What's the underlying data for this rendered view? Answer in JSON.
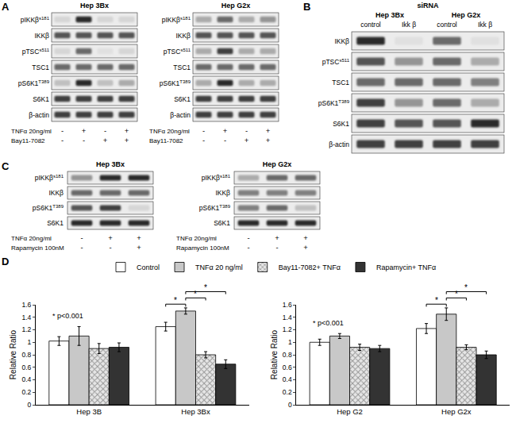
{
  "panels": [
    {
      "label": "A",
      "blots": [
        {
          "title": "Hep 3Bx",
          "conditions_position": "bottom",
          "rows": [
            {
              "name": "pIKKβ",
              "site": "s181",
              "bands": [
                0.1,
                0.9,
                0.1,
                0.1
              ]
            },
            {
              "name": "IKKβ",
              "bands": [
                0.7,
                0.7,
                0.7,
                0.7
              ]
            },
            {
              "name": "pTSC",
              "site": "s511",
              "bands": [
                0.1,
                0.6,
                0.05,
                0.1
              ]
            },
            {
              "name": "TSC1",
              "bands": [
                0.6,
                0.6,
                0.6,
                0.6
              ]
            },
            {
              "name": "pS6K1",
              "site": "T389",
              "bands": [
                0.2,
                0.9,
                0.2,
                0.3
              ]
            },
            {
              "name": "S6K1",
              "bands": [
                0.8,
                0.8,
                0.8,
                0.8
              ]
            },
            {
              "name": "β-actin",
              "bands": [
                0.8,
                0.8,
                0.8,
                0.8
              ]
            }
          ],
          "conditions": [
            {
              "label": "TNFα 20ng/ml",
              "values": [
                "-",
                "+",
                "-",
                "+"
              ]
            },
            {
              "label": "Bay11-7082",
              "values": [
                "-",
                "-",
                "+",
                "+"
              ]
            }
          ]
        },
        {
          "title": "Hep G2x",
          "conditions_position": "bottom",
          "rows": [
            {
              "name": "pIKKβ",
              "site": "s181",
              "bands": [
                0.3,
                0.6,
                0.3,
                0.4
              ]
            },
            {
              "name": "IKKβ",
              "bands": [
                0.7,
                0.7,
                0.7,
                0.7
              ]
            },
            {
              "name": "pTSC",
              "site": "s511",
              "bands": [
                0.3,
                0.8,
                0.3,
                0.3
              ]
            },
            {
              "name": "TSC1",
              "bands": [
                0.6,
                0.6,
                0.6,
                0.6
              ]
            },
            {
              "name": "pS6K1",
              "site": "T389",
              "bands": [
                0.3,
                0.9,
                0.3,
                0.3
              ]
            },
            {
              "name": "S6K1",
              "bands": [
                0.8,
                0.8,
                0.8,
                0.8
              ]
            },
            {
              "name": "β-actin",
              "bands": [
                0.8,
                0.8,
                0.8,
                0.8
              ]
            }
          ],
          "conditions": [
            {
              "label": "TNFα 20ng/ml",
              "values": [
                "-",
                "+",
                "-",
                "+"
              ]
            },
            {
              "label": "Bay11-7082",
              "values": [
                "-",
                "-",
                "+",
                "+"
              ]
            }
          ]
        }
      ]
    },
    {
      "label": "B",
      "blots": [
        {
          "conditions_position": "top",
          "column_groups": [
            {
              "title": "Hep 3Bx",
              "span": 2
            },
            {
              "title": "Hep G2x",
              "span": 2
            }
          ],
          "conditions": [
            {
              "label": "siRNA",
              "values": [
                "control",
                "Ikk β",
                "control",
                "Ikk β"
              ]
            }
          ],
          "rows": [
            {
              "name": "IKKβ",
              "bands": [
                0.9,
                0.05,
                0.6,
                0.05
              ]
            },
            {
              "name": "pTSC",
              "site": "s511",
              "bands": [
                0.7,
                0.4,
                0.6,
                0.3
              ]
            },
            {
              "name": "TSC1",
              "bands": [
                0.6,
                0.6,
                0.6,
                0.5
              ]
            },
            {
              "name": "pS6K1",
              "site": "T389",
              "bands": [
                0.8,
                0.4,
                0.6,
                0.3
              ]
            },
            {
              "name": "S6K1",
              "bands": [
                0.8,
                0.7,
                0.7,
                0.9
              ]
            },
            {
              "name": "β-actin",
              "bands": [
                0.8,
                0.8,
                0.8,
                0.8
              ]
            }
          ]
        }
      ]
    },
    {
      "label": "C",
      "blots": [
        {
          "title": "Hep 3Bx",
          "conditions_position": "bottom",
          "rows": [
            {
              "name": "pIKKβ",
              "site": "s181",
              "bands": [
                0.4,
                0.9,
                0.9
              ]
            },
            {
              "name": "IKKβ",
              "bands": [
                0.6,
                0.6,
                0.6
              ]
            },
            {
              "name": "pS6K1",
              "site": "T389",
              "bands": [
                0.7,
                0.8,
                0.1
              ]
            },
            {
              "name": "S6K1",
              "bands": [
                0.9,
                0.9,
                0.9
              ]
            }
          ],
          "conditions": [
            {
              "label": "TNFα 20ng/ml",
              "values": [
                "-",
                "+",
                "+"
              ]
            },
            {
              "label": "Rapamycin 100nM",
              "values": [
                "-",
                "-",
                "+"
              ]
            }
          ]
        },
        {
          "title": "Hep G2x",
          "conditions_position": "bottom",
          "rows": [
            {
              "name": "pIKKβ",
              "site": "s181",
              "bands": [
                0.3,
                0.6,
                0.6
              ]
            },
            {
              "name": "IKKβ",
              "bands": [
                0.5,
                0.5,
                0.5
              ]
            },
            {
              "name": "pS6K1",
              "site": "T389",
              "bands": [
                0.5,
                0.6,
                0.2
              ]
            },
            {
              "name": "S6K1",
              "bands": [
                0.9,
                0.9,
                0.9
              ]
            }
          ],
          "conditions": [
            {
              "label": "TNFα 20ng/ml",
              "values": [
                "-",
                "+",
                "+"
              ]
            },
            {
              "label": "Rapamycin 100nM",
              "values": [
                "-",
                "-",
                "+"
              ]
            }
          ]
        }
      ]
    },
    {
      "label": "D",
      "blots": []
    }
  ],
  "chart_data": [
    {
      "type": "bar",
      "y_label": "Relative Ratio",
      "legend": "top",
      "grid": false,
      "categories": [
        "Hep 3B",
        "Hep 3Bx"
      ],
      "series": [
        {
          "name": "Control",
          "color": "#ffffff",
          "values": [
            1.02,
            1.25
          ],
          "errors": [
            0.07,
            0.07
          ]
        },
        {
          "name": "TNFα 20 ng/ml",
          "color": "#c8c8c8",
          "values": [
            1.1,
            1.5
          ],
          "errors": [
            0.15,
            0.05
          ]
        },
        {
          "name": "Bay11-7082+ TNFα",
          "color": "#e6e6e6",
          "marker": "crosshatch",
          "values": [
            0.9,
            0.8
          ],
          "errors": [
            0.08,
            0.05
          ]
        },
        {
          "name": "Rapamycin+ TNFα",
          "color": "#333333",
          "values": [
            0.92,
            0.65
          ],
          "errors": [
            0.07,
            0.07
          ]
        }
      ],
      "ylim": [
        0,
        1.6
      ],
      "yticks": [
        0,
        0.2,
        0.4,
        0.6,
        0.8,
        1,
        1.2,
        1.4,
        1.6
      ],
      "annotations": [
        {
          "text": "* p<0.001",
          "category": "Hep 3B"
        }
      ],
      "comparisons": [
        {
          "group": "Hep 3Bx",
          "from": "Control",
          "to": "TNFα 20 ng/ml",
          "label": "*"
        },
        {
          "group": "Hep 3Bx",
          "from": "TNFα 20 ng/ml",
          "to": "Bay11-7082+ TNFα",
          "label": "*"
        },
        {
          "group": "Hep 3Bx",
          "from": "TNFα 20 ng/ml",
          "to": "Rapamycin+ TNFα",
          "label": "*"
        }
      ]
    },
    {
      "type": "bar",
      "y_label": "Relative Ratio",
      "grid": false,
      "categories": [
        "Hep G2",
        "Hep G2x"
      ],
      "series": [
        {
          "name": "Control",
          "color": "#ffffff",
          "values": [
            1.0,
            1.22
          ],
          "errors": [
            0.05,
            0.08
          ]
        },
        {
          "name": "TNFα 20 ng/ml",
          "color": "#c8c8c8",
          "values": [
            1.1,
            1.45
          ],
          "errors": [
            0.04,
            0.1
          ]
        },
        {
          "name": "Bay11-7082+ TNFα",
          "color": "#e6e6e6",
          "marker": "crosshatch",
          "values": [
            0.92,
            0.92
          ],
          "errors": [
            0.05,
            0.04
          ]
        },
        {
          "name": "Rapamycin+ TNFα",
          "color": "#333333",
          "values": [
            0.9,
            0.8
          ],
          "errors": [
            0.05,
            0.06
          ]
        }
      ],
      "ylim": [
        0,
        1.6
      ],
      "yticks": [
        0,
        0.2,
        0.4,
        0.6,
        0.8,
        1,
        1.2,
        1.4,
        1.6
      ],
      "annotations": [
        {
          "text": "* p<0.001",
          "category": "Hep G2"
        }
      ],
      "comparisons": [
        {
          "group": "Hep G2x",
          "from": "Control",
          "to": "TNFα 20 ng/ml",
          "label": "*"
        },
        {
          "group": "Hep G2x",
          "from": "TNFα 20 ng/ml",
          "to": "Bay11-7082+ TNFα",
          "label": "*"
        },
        {
          "group": "Hep G2x",
          "from": "TNFα 20 ng/ml",
          "to": "Rapamycin+ TNFα",
          "label": "*"
        }
      ]
    }
  ]
}
